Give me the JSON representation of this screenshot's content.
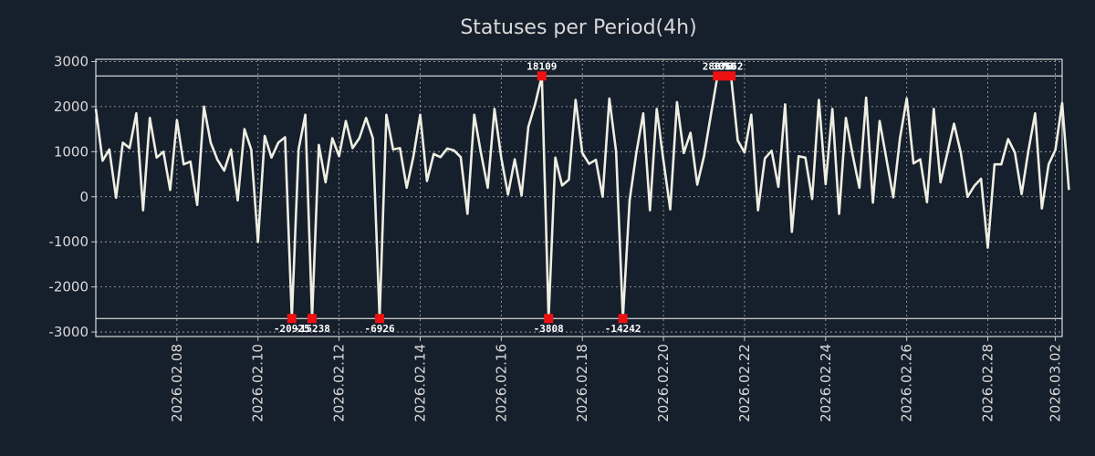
{
  "chart_data": {
    "type": "line",
    "title": "Statuses per Period(4h)",
    "xlabel": "",
    "ylabel": "",
    "ylim": [
      -3100,
      3050
    ],
    "yticks": [
      3000,
      2000,
      1000,
      0,
      -1000,
      -2000,
      -3000
    ],
    "ytick_labels": [
      "3000",
      "2000",
      "1000",
      "0",
      "-1000",
      "-2000",
      "-3000"
    ],
    "xlim": [
      0,
      143
    ],
    "xticks": [
      12,
      24,
      36,
      48,
      60,
      72,
      84,
      96,
      108,
      120,
      132,
      142
    ],
    "xtick_labels": [
      "2026.02.08",
      "2026.02.10",
      "2026.02.12",
      "2026.02.14",
      "2026.02.16",
      "2026.02.18",
      "2026.02.20",
      "2026.02.22",
      "2026.02.24",
      "2026.02.26",
      "2026.02.28",
      "2026.03.02"
    ],
    "clip_upper": 2680,
    "clip_lower": -2700,
    "series": [
      {
        "name": "Statuses",
        "color": "#eeeee2",
        "values": [
          1950,
          800,
          1050,
          -20,
          1200,
          1080,
          1850,
          -300,
          1750,
          870,
          1000,
          150,
          1700,
          720,
          780,
          -180,
          2000,
          1200,
          820,
          580,
          1050,
          -80,
          1500,
          1050,
          -1000,
          1350,
          870,
          1200,
          1320,
          -2700,
          1050,
          1820,
          -2700,
          1150,
          320,
          1300,
          900,
          1680,
          1080,
          1300,
          1750,
          1300,
          -2700,
          1820,
          1050,
          1080,
          200,
          900,
          1820,
          350,
          950,
          880,
          1070,
          1030,
          880,
          -380,
          1820,
          970,
          200,
          1950,
          870,
          50,
          830,
          30,
          1550,
          2050,
          2680,
          -2700,
          870,
          250,
          380,
          2150,
          970,
          730,
          820,
          0,
          2180,
          1000,
          -2700,
          -80,
          980,
          1850,
          -300,
          1950,
          800,
          -280,
          2100,
          970,
          1420,
          270,
          900,
          1800,
          2680,
          2680,
          2680,
          1250,
          980,
          1820,
          -300,
          850,
          1020,
          220,
          2050,
          -780,
          900,
          870,
          -50,
          2150,
          280,
          1950,
          -380,
          1750,
          930,
          200,
          2200,
          -130,
          1680,
          830,
          -10,
          1300,
          2180,
          740,
          830,
          -120,
          1950,
          320,
          960,
          1620,
          980,
          0,
          240,
          400,
          -1130,
          720,
          720,
          1280,
          980,
          60,
          1020,
          1850,
          -260,
          720,
          1040,
          2080,
          150
        ]
      }
    ],
    "annotations": [
      {
        "index": 29,
        "label": "-20925",
        "position": "bottom"
      },
      {
        "index": 32,
        "label": "-15238",
        "position": "bottom"
      },
      {
        "index": 42,
        "label": "-6926",
        "position": "bottom"
      },
      {
        "index": 67,
        "label": "-3808",
        "position": "bottom"
      },
      {
        "index": 78,
        "label": "-14242",
        "position": "bottom"
      },
      {
        "index": 66,
        "label": "18109",
        "position": "top"
      },
      {
        "index": 92,
        "label": "28876",
        "position": "top"
      },
      {
        "index": 93,
        "label": "3059",
        "position": "top"
      },
      {
        "index": 94,
        "label": "3662",
        "position": "top"
      }
    ]
  },
  "colors": {
    "background": "#161f2c",
    "line": "#eeeee2",
    "marker": "#ee1111",
    "grid": "#c8c8c8",
    "text": "#d9d9d9"
  }
}
